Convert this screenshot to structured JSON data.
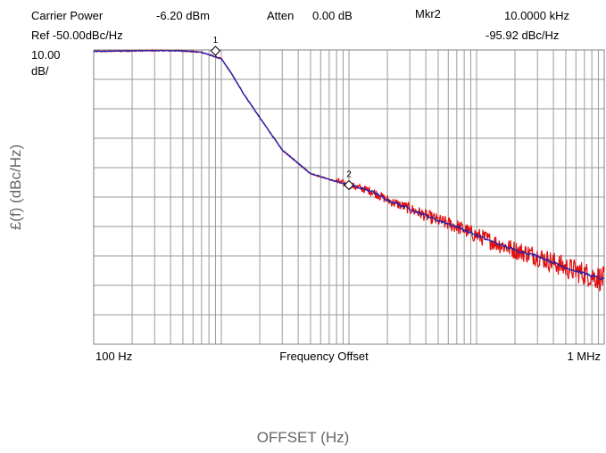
{
  "header": {
    "carrier_power_label": "Carrier Power",
    "carrier_power_value": "-6.20 dBm",
    "atten_label": "Atten",
    "atten_value": "0.00 dB",
    "marker_label": "Mkr2",
    "marker_freq": "10.0000 kHz",
    "ref_label": "Ref -50.00dBc/Hz",
    "marker_value": "-95.92 dBc/Hz",
    "scale_value": "10.00",
    "scale_unit": "dB/"
  },
  "chart_data": {
    "type": "line",
    "title": "",
    "ylabel": "£(f) (dBc/Hz)",
    "xlabel_outer": "OFFSET (Hz)",
    "xlabel_inner": "Frequency Offset",
    "x_scale": "log",
    "xlim": [
      100,
      1000000
    ],
    "ylim": [
      -150,
      -50
    ],
    "y_divisions": 10,
    "grid": true,
    "x_tick_labels": [
      {
        "value": 100,
        "label": "100 Hz"
      },
      {
        "value": 1000000,
        "label": "1 MHz"
      }
    ],
    "series": [
      {
        "color": "#e01010",
        "points": [
          [
            100,
            -50.5
          ],
          [
            300,
            -50.2
          ],
          [
            500,
            -50.3
          ],
          [
            700,
            -50.8
          ],
          [
            1000,
            -53
          ],
          [
            1200,
            -58
          ],
          [
            1500,
            -65
          ],
          [
            2000,
            -73
          ],
          [
            3000,
            -84
          ],
          [
            5000,
            -92
          ],
          [
            7000,
            -94
          ],
          [
            10000,
            -95.9
          ],
          [
            15000,
            -98
          ],
          [
            20000,
            -101
          ],
          [
            30000,
            -104
          ],
          [
            50000,
            -108
          ],
          [
            70000,
            -110
          ],
          [
            100000,
            -113
          ],
          [
            150000,
            -116
          ],
          [
            200000,
            -118
          ],
          [
            300000,
            -120
          ],
          [
            500000,
            -124
          ],
          [
            700000,
            -126
          ],
          [
            1000000,
            -128
          ]
        ]
      },
      {
        "color": "#2020b0",
        "points": [
          [
            100,
            -50.5
          ],
          [
            300,
            -50.2
          ],
          [
            500,
            -50.3
          ],
          [
            700,
            -50.8
          ],
          [
            1000,
            -53
          ],
          [
            1200,
            -58
          ],
          [
            1500,
            -65
          ],
          [
            2000,
            -73
          ],
          [
            3000,
            -84
          ],
          [
            5000,
            -92
          ],
          [
            7000,
            -94
          ],
          [
            10000,
            -95.9
          ],
          [
            15000,
            -98
          ],
          [
            20000,
            -101
          ],
          [
            30000,
            -104
          ],
          [
            50000,
            -108
          ],
          [
            70000,
            -110
          ],
          [
            100000,
            -113
          ],
          [
            150000,
            -116
          ],
          [
            200000,
            -118
          ],
          [
            300000,
            -120
          ],
          [
            500000,
            -124
          ],
          [
            700000,
            -126
          ],
          [
            1000000,
            -128
          ]
        ]
      }
    ],
    "markers": [
      {
        "label": "1",
        "x": 900,
        "y": -50.3
      },
      {
        "label": "2",
        "x": 10000,
        "y": -95.92
      }
    ]
  }
}
